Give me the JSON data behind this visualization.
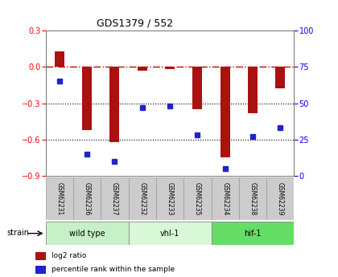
{
  "title": "GDS1379 / 552",
  "samples": [
    "GSM62231",
    "GSM62236",
    "GSM62237",
    "GSM62232",
    "GSM62233",
    "GSM62235",
    "GSM62234",
    "GSM62238",
    "GSM62239"
  ],
  "log2_ratio": [
    0.13,
    -0.52,
    -0.62,
    -0.03,
    -0.02,
    -0.35,
    -0.75,
    -0.38,
    -0.18
  ],
  "percentile_rank": [
    65,
    15,
    10,
    47,
    48,
    28,
    5,
    27,
    33
  ],
  "groups": [
    {
      "label": "wild type",
      "indices": [
        0,
        1,
        2
      ],
      "color": "#c8f0c8"
    },
    {
      "label": "vhl-1",
      "indices": [
        3,
        4,
        5
      ],
      "color": "#d8f8d8"
    },
    {
      "label": "hif-1",
      "indices": [
        6,
        7,
        8
      ],
      "color": "#66dd66"
    }
  ],
  "ylim_left": [
    -0.9,
    0.3
  ],
  "ylim_right": [
    0,
    100
  ],
  "yticks_left": [
    0.3,
    0.0,
    -0.3,
    -0.6,
    -0.9
  ],
  "yticks_right": [
    100,
    75,
    50,
    25,
    0
  ],
  "bar_color": "#aa1111",
  "dot_color": "#2222cc",
  "zero_line_color": "#cc0000",
  "grid_color": "#000000",
  "background_color": "#ffffff",
  "plot_bg": "#ffffff",
  "tick_box_color": "#cccccc",
  "tick_box_edge": "#999999"
}
